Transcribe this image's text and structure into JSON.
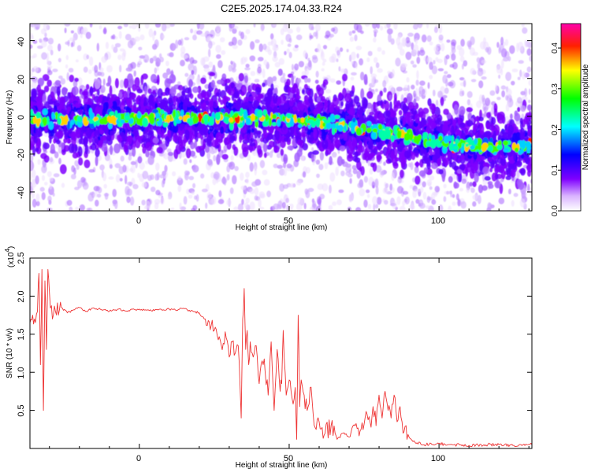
{
  "title": "C2E5.2025.174.04.33.R24",
  "chart_data": [
    {
      "type": "heatmap",
      "title": "C2E5.2025.174.04.33.R24",
      "xlabel": "Height of straight line (km)",
      "ylabel": "Frequency (Hz)",
      "xlim": [
        -36.5,
        131
      ],
      "ylim": [
        -50,
        49
      ],
      "xticks": [
        0,
        50,
        100
      ],
      "yticks": [
        -40,
        -20,
        0,
        20,
        40
      ],
      "colorbar": {
        "label": "Normalized spectral amplitude",
        "range": [
          0.0,
          0.46
        ],
        "ticks": [
          "0.0",
          "0.1",
          "0.2",
          "0.3",
          "0.4"
        ],
        "colormap": [
          "#ffffff",
          "#7f00ff",
          "#0000ff",
          "#00ffff",
          "#00ff00",
          "#ffff00",
          "#ff0000",
          "#ff00aa"
        ]
      },
      "ridge": {
        "x": [
          -36,
          -20,
          0,
          20,
          40,
          55,
          65,
          75,
          85,
          95,
          105,
          115,
          125,
          131
        ],
        "y": [
          -2,
          -2,
          -1,
          -1,
          -1,
          -2,
          -4,
          -7,
          -9,
          -12,
          -15,
          -16,
          -16,
          -16
        ]
      },
      "blank_region": {
        "x": [
          88,
          131
        ],
        "y_above": 42
      }
    },
    {
      "type": "line",
      "xlabel": "Height of straight line (km)",
      "ylabel": "SNR (10 * v/v)",
      "multiplier": "(x10",
      "multiplier_exp": "4",
      "multiplier_close": ")",
      "xlim": [
        -36.5,
        131
      ],
      "ylim": [
        0,
        2.5
      ],
      "xticks": [
        0,
        50,
        100
      ],
      "yticks": [
        0.5,
        1.0,
        1.5,
        2.0,
        2.5
      ],
      "line_color": "#ee3333",
      "series": [
        {
          "x": [
            -36.5,
            -35,
            -34,
            -33.5,
            -33,
            -32.5,
            -32,
            -31.5,
            -31,
            -30.5,
            -30,
            -29,
            -28,
            -26,
            -24,
            -22,
            -20,
            -18,
            -15,
            -12,
            -10,
            -7,
            -5,
            -3,
            0,
            3,
            5,
            8,
            10,
            12,
            14,
            16,
            18,
            20,
            21,
            22,
            23,
            24,
            25,
            26,
            27,
            28,
            29,
            30,
            31,
            32,
            33,
            34,
            34.5,
            35,
            35.5,
            36,
            36.5,
            37,
            38,
            39,
            40,
            41,
            42,
            43,
            44,
            45,
            46,
            47,
            47.5,
            48,
            49,
            50,
            51,
            52,
            52.5,
            53,
            53.5,
            54,
            55,
            56,
            57,
            58,
            59,
            60,
            62,
            64,
            66,
            68,
            70,
            72,
            74,
            76,
            77,
            78,
            79,
            80,
            81,
            82,
            83,
            84,
            85,
            86,
            87,
            88,
            89,
            90,
            92,
            95,
            100,
            105,
            110,
            115,
            120,
            125,
            131
          ],
          "y": [
            1.65,
            1.7,
            1.8,
            2.3,
            1.1,
            2.35,
            0.5,
            2.2,
            1.3,
            2.35,
            2.05,
            1.7,
            1.8,
            1.85,
            1.78,
            1.82,
            1.85,
            1.8,
            1.84,
            1.82,
            1.8,
            1.83,
            1.81,
            1.82,
            1.83,
            1.82,
            1.81,
            1.82,
            1.83,
            1.82,
            1.84,
            1.82,
            1.8,
            1.78,
            1.73,
            1.7,
            1.68,
            1.62,
            1.55,
            1.48,
            1.42,
            1.38,
            1.45,
            1.2,
            1.4,
            1.25,
            1.35,
            0.4,
            1.7,
            2.1,
            1.3,
            1.55,
            1.1,
            1.4,
            1.2,
            1.35,
            0.85,
            1.15,
            1.0,
            0.7,
            1.4,
            0.5,
            1.3,
            0.75,
            0.85,
            1.55,
            0.7,
            0.9,
            0.65,
            0.8,
            0.12,
            1.75,
            0.55,
            0.9,
            0.7,
            0.5,
            0.8,
            0.45,
            0.25,
            0.35,
            0.2,
            0.3,
            0.12,
            0.2,
            0.15,
            0.3,
            0.25,
            0.45,
            0.35,
            0.55,
            0.3,
            0.7,
            0.4,
            0.75,
            0.5,
            0.4,
            0.7,
            0.35,
            0.55,
            0.2,
            0.3,
            0.15,
            0.08,
            0.05,
            0.06,
            0.05,
            0.04,
            0.05,
            0.05,
            0.04,
            0.05
          ]
        }
      ]
    }
  ]
}
